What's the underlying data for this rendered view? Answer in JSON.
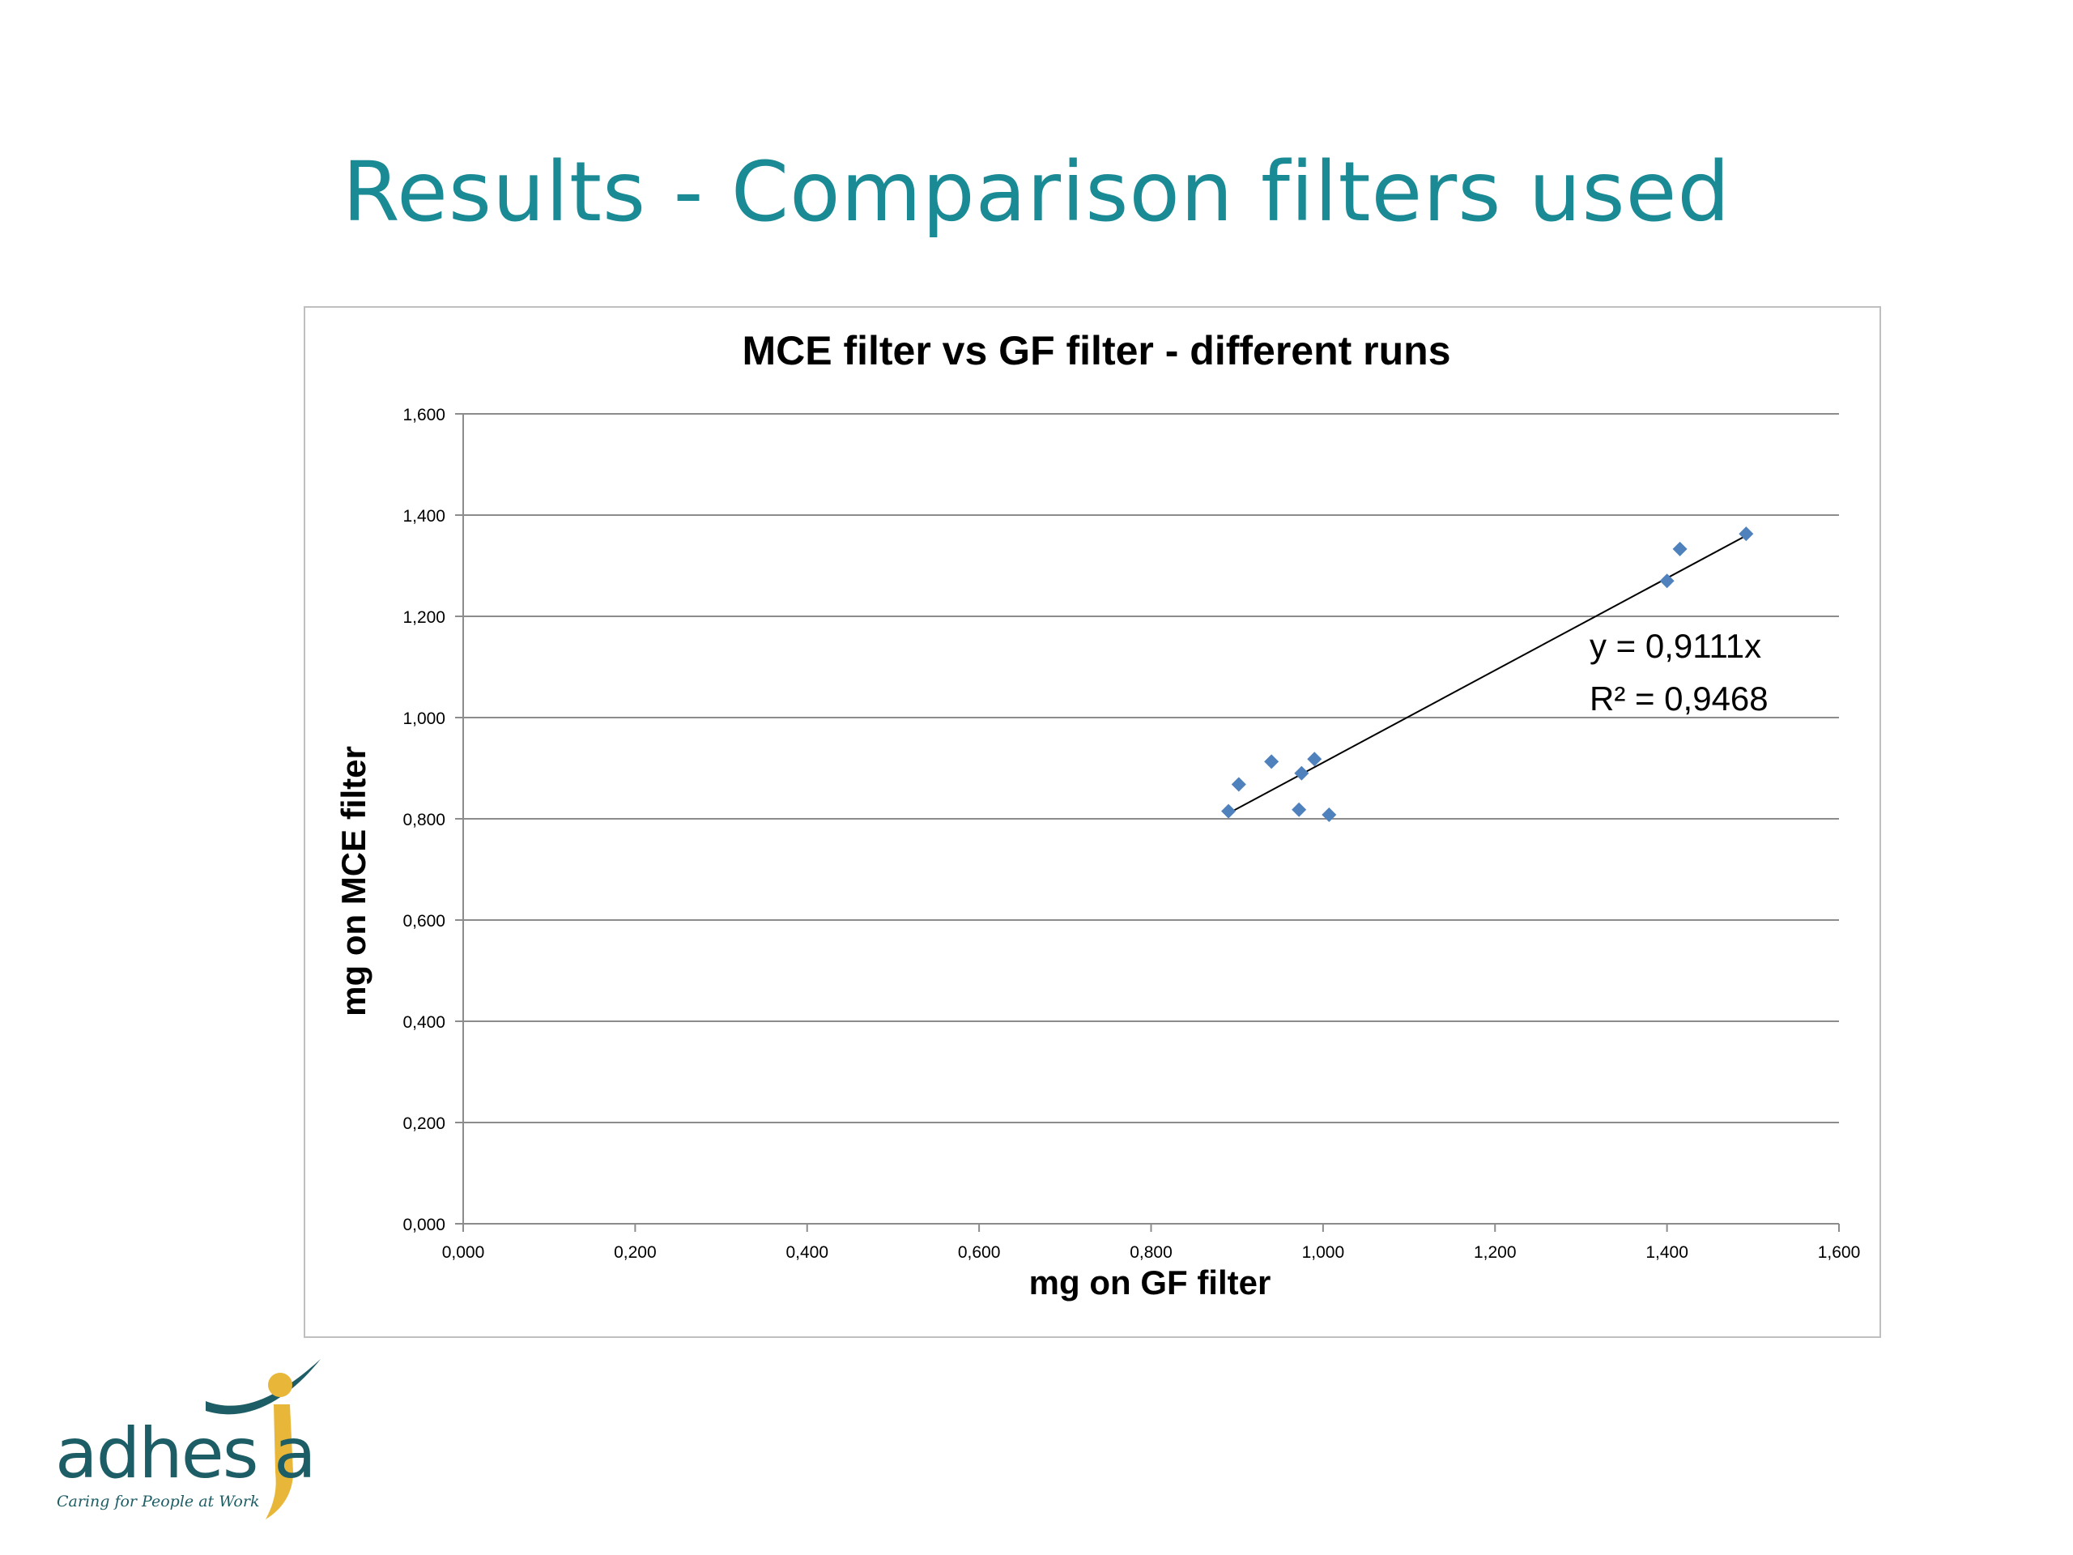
{
  "slide": {
    "title": "Results - Comparison filters used"
  },
  "logo": {
    "wordmark": "adhesia",
    "tagline": "Caring for People at Work",
    "colors": {
      "teal": "#1d5d65",
      "gold": "#e8b73a"
    }
  },
  "chart_data": {
    "type": "scatter",
    "title": "MCE filter vs GF filter - different runs",
    "xlabel": "mg on GF filter",
    "ylabel": "mg on MCE  filter",
    "xlim": [
      0,
      1.6
    ],
    "ylim": [
      0,
      1.6
    ],
    "xticks": [
      "0,000",
      "0,200",
      "0,400",
      "0,600",
      "0,800",
      "1,000",
      "1,200",
      "1,400",
      "1,600"
    ],
    "yticks": [
      "0,000",
      "0,200",
      "0,400",
      "0,600",
      "0,800",
      "1,000",
      "1,200",
      "1,400",
      "1,600"
    ],
    "grid": "horizontal",
    "legend": "none",
    "marker_color": "#4f81bd",
    "series": [
      {
        "points": [
          {
            "x": 0.89,
            "y": 0.815
          },
          {
            "x": 0.902,
            "y": 0.868
          },
          {
            "x": 0.94,
            "y": 0.913
          },
          {
            "x": 0.972,
            "y": 0.818
          },
          {
            "x": 0.975,
            "y": 0.89
          },
          {
            "x": 0.99,
            "y": 0.918
          },
          {
            "x": 1.007,
            "y": 0.808
          },
          {
            "x": 1.4,
            "y": 1.27
          },
          {
            "x": 1.415,
            "y": 1.333
          },
          {
            "x": 1.492,
            "y": 1.363
          }
        ]
      }
    ],
    "trendline": {
      "slope": 0.9111,
      "intercept": 0,
      "x_range": [
        0.89,
        1.492
      ],
      "equation": "y = 0,9111x",
      "r2": "R² = 0,9468"
    }
  }
}
